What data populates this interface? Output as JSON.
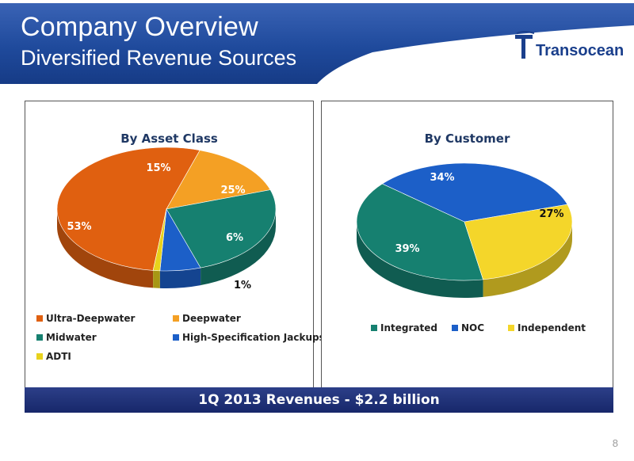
{
  "header": {
    "title": "Company Overview",
    "subtitle": "Diversified Revenue Sources",
    "logo_text": "Transocean",
    "banner_color": "#1f4a9c"
  },
  "chart_data": [
    {
      "type": "pie",
      "title": "By Asset Class",
      "categories": [
        "Ultra-Deepwater",
        "Deepwater",
        "Midwater",
        "High-Specification Jackups",
        "ADTI"
      ],
      "values": [
        53,
        15,
        25,
        6,
        1
      ],
      "labels": [
        "53%",
        "15%",
        "25%",
        "6%",
        "1%"
      ],
      "colors": [
        "#e06010",
        "#f4a024",
        "#168070",
        "#1c5fc8",
        "#e8d21c"
      ],
      "legend_placement": "bottom"
    },
    {
      "type": "pie",
      "title": "By Customer",
      "categories": [
        "Integrated",
        "NOC",
        "Independent"
      ],
      "values": [
        39,
        34,
        27
      ],
      "labels": [
        "39%",
        "34%",
        "27%"
      ],
      "colors": [
        "#168070",
        "#1c5fc8",
        "#f4d62a"
      ],
      "legend_placement": "bottom"
    }
  ],
  "footer": {
    "revenue_text": "1Q 2013 Revenues - $2.2 billion",
    "page_number": "8"
  }
}
